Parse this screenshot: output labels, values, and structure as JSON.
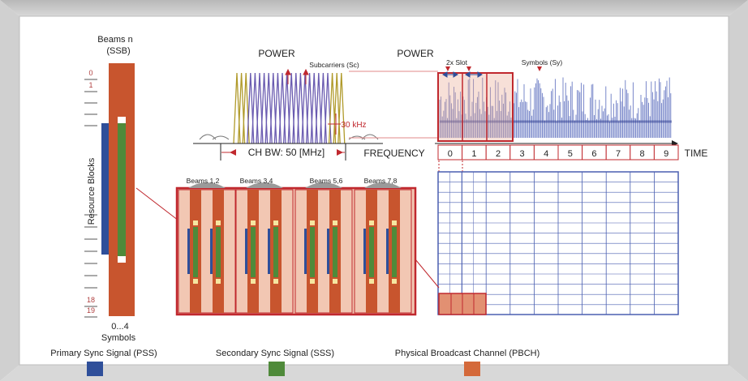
{
  "ssb_column": {
    "title_line1": "Beams n",
    "title_line2": "(SSB)",
    "tick_top_a": "0",
    "tick_top_b": "1",
    "tick_bottom_a": "18",
    "tick_bottom_b": "19",
    "axis_label": "Resource Blocks",
    "symbols_range": "0...4",
    "symbols_label": "Symbols"
  },
  "frequency_plot": {
    "power_label": "POWER",
    "subcarriers_label": "Subcarriers (Sc)",
    "spacing_label": "30 kHz",
    "bandwidth_label": "CH BW: 50 [MHz]",
    "axis_label": "FREQUENCY"
  },
  "time_plot": {
    "power_label": "POWER",
    "slot_label": "2x Slot",
    "symbols_label": "Symbols (Sy)",
    "axis_label": "TIME",
    "slots": [
      "0",
      "1",
      "2",
      "3",
      "4",
      "5",
      "6",
      "7",
      "8",
      "9"
    ]
  },
  "beams": {
    "groups": [
      "Beams 1,2",
      "Beams 3,4",
      "Beams 5,6",
      "Beams 7,8"
    ]
  },
  "legend": {
    "items": [
      {
        "label": "Primary Sync Signal (PSS)",
        "color": "#2f4f9a"
      },
      {
        "label": "Secondary Sync Signal (SSS)",
        "color": "#4f8a3a"
      },
      {
        "label": "Physical Broadcast Channel (PBCH)",
        "color": "#d4693a"
      }
    ]
  },
  "colors": {
    "frame": "#c9c9c9",
    "pbch": "#c8552e",
    "pss": "#2f4f9a",
    "sss": "#4f8a3a",
    "highlight": "#c0282e",
    "grid": "#4a5fb0",
    "beam_bg": "#f2c7b3"
  }
}
